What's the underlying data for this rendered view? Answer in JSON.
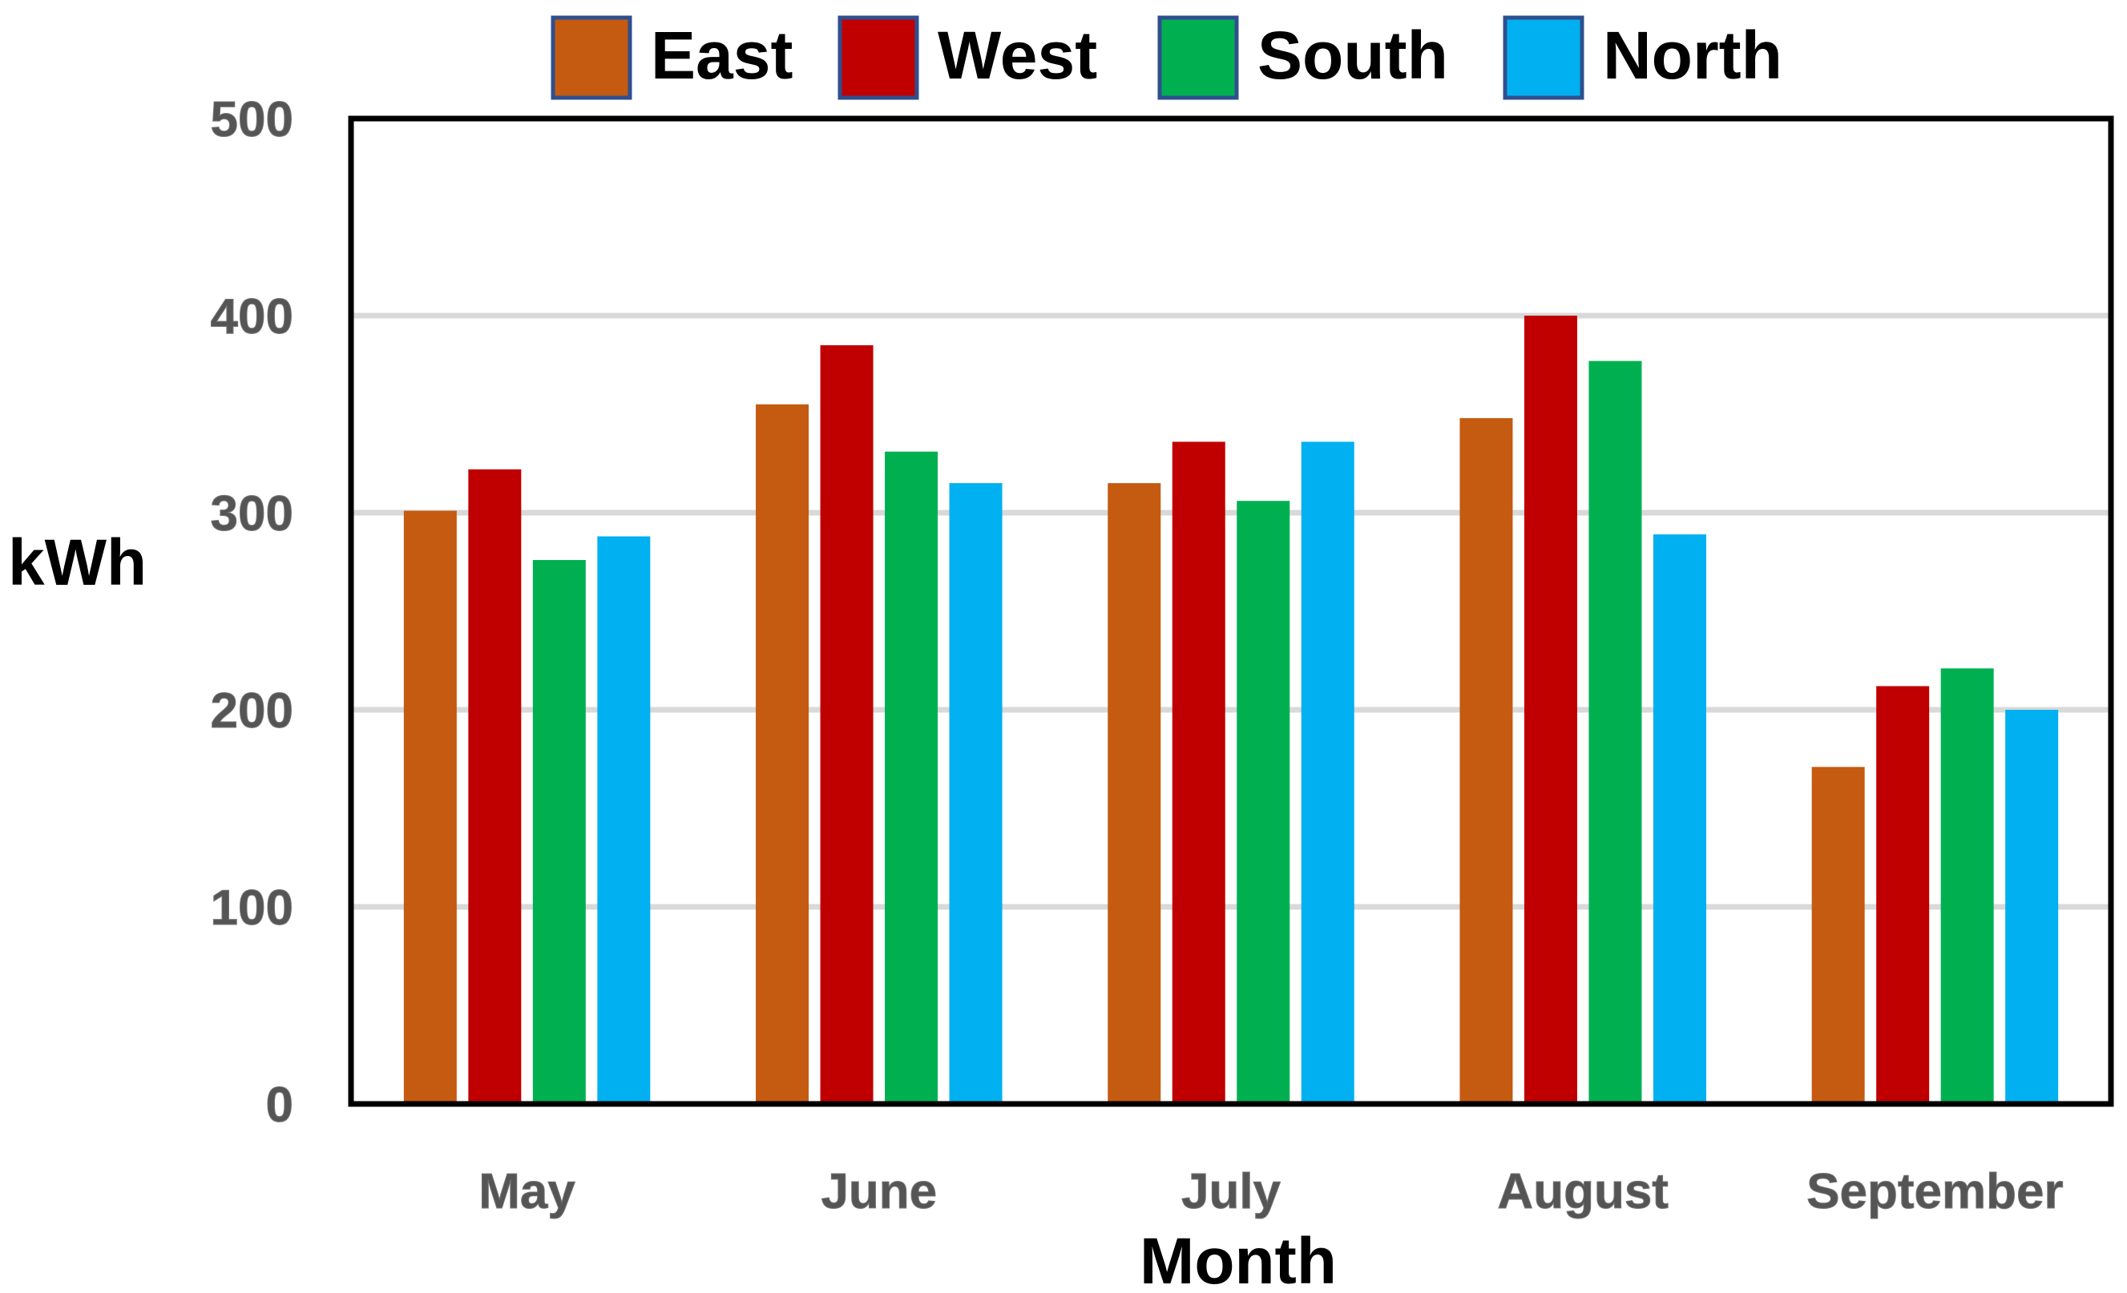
{
  "chart_data": {
    "type": "bar",
    "categories": [
      "May",
      "June",
      "July",
      "August",
      "September"
    ],
    "series": [
      {
        "name": "East",
        "color": "#C55A11",
        "values": [
          301,
          355,
          315,
          348,
          171
        ]
      },
      {
        "name": "West",
        "color": "#C00000",
        "values": [
          322,
          385,
          336,
          400,
          212
        ]
      },
      {
        "name": "South",
        "color": "#00B050",
        "values": [
          276,
          331,
          306,
          377,
          221
        ]
      },
      {
        "name": "North",
        "color": "#00B0F0",
        "values": [
          288,
          315,
          336,
          289,
          200
        ]
      }
    ],
    "xlabel": "Month",
    "ylabel": "kWh",
    "ylim": [
      0,
      500
    ],
    "yticks": [
      "0",
      "100",
      "200",
      "300",
      "400",
      "500"
    ],
    "grid": true,
    "legend_position": "top"
  }
}
